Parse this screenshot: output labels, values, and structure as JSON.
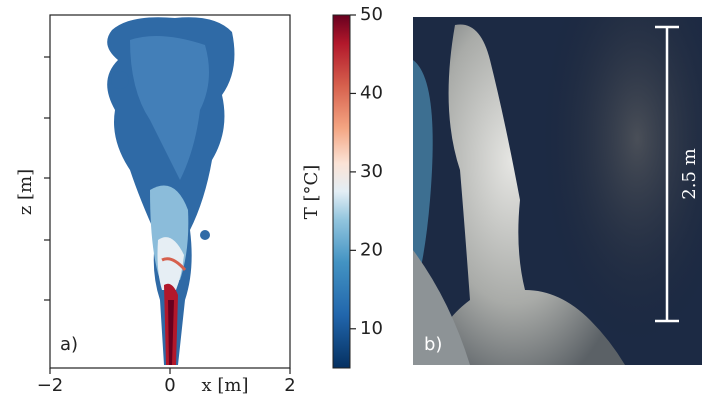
{
  "panel_a": {
    "label": "a)",
    "xlabel": "x [m]",
    "ylabel": "z [m]",
    "xlim": [
      -2,
      2
    ],
    "xticks": [
      {
        "value": -2,
        "label": "−2"
      },
      0,
      2
    ]
  },
  "colorbar": {
    "label": "T [°C]",
    "lim": [
      5,
      50
    ],
    "ticks": [
      10,
      20,
      30,
      40,
      50
    ]
  },
  "panel_b": {
    "label": "b)",
    "scale_bar": "2.5 m"
  }
}
